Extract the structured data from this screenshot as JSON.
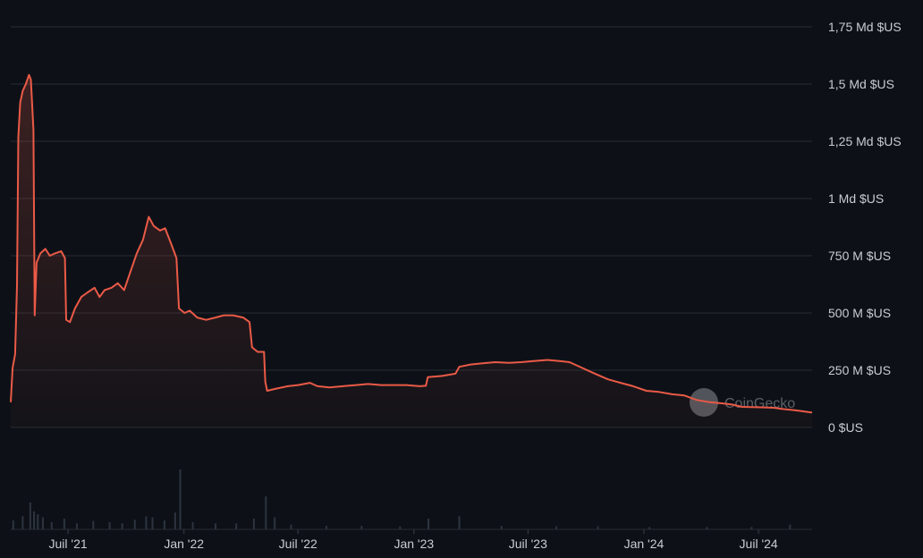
{
  "chart_data": {
    "type": "area",
    "y_axis_position": "right",
    "ylim": [
      0,
      1750000000
    ],
    "yticks": [
      {
        "value": 0,
        "label": "0 $US"
      },
      {
        "value": 250000000,
        "label": "250 M $US"
      },
      {
        "value": 500000000,
        "label": "500 M $US"
      },
      {
        "value": 750000000,
        "label": "750 M $US"
      },
      {
        "value": 1000000000,
        "label": "1 Md $US"
      },
      {
        "value": 1250000000,
        "label": "1,25 Md $US"
      },
      {
        "value": 1500000000,
        "label": "1,5 Md $US"
      },
      {
        "value": 1750000000,
        "label": "1,75 Md $US"
      }
    ],
    "xlim": [
      "2021-04-01",
      "2024-09-24"
    ],
    "xticks": [
      {
        "date": "2021-07-01",
        "label": "Juil '21"
      },
      {
        "date": "2022-01-01",
        "label": "Jan '22"
      },
      {
        "date": "2022-07-01",
        "label": "Juil '22"
      },
      {
        "date": "2023-01-01",
        "label": "Jan '23"
      },
      {
        "date": "2023-07-01",
        "label": "Juil '23"
      },
      {
        "date": "2024-01-01",
        "label": "Jan '24"
      },
      {
        "date": "2024-07-01",
        "label": "Juil '24"
      }
    ],
    "grid": true,
    "line_color": "#ea5a47",
    "watermark": "CoinGecko",
    "series": [
      {
        "points": [
          [
            "2021-04-01",
            110000000
          ],
          [
            "2021-04-04",
            260000000
          ],
          [
            "2021-04-08",
            320000000
          ],
          [
            "2021-04-11",
            620000000
          ],
          [
            "2021-04-13",
            1270000000
          ],
          [
            "2021-04-16",
            1420000000
          ],
          [
            "2021-04-20",
            1470000000
          ],
          [
            "2021-04-25",
            1500000000
          ],
          [
            "2021-04-30",
            1540000000
          ],
          [
            "2021-05-03",
            1520000000
          ],
          [
            "2021-05-07",
            1300000000
          ],
          [
            "2021-05-09",
            490000000
          ],
          [
            "2021-05-12",
            720000000
          ],
          [
            "2021-05-18",
            760000000
          ],
          [
            "2021-05-26",
            780000000
          ],
          [
            "2021-06-02",
            750000000
          ],
          [
            "2021-06-10",
            760000000
          ],
          [
            "2021-06-20",
            770000000
          ],
          [
            "2021-06-26",
            740000000
          ],
          [
            "2021-06-28",
            470000000
          ],
          [
            "2021-07-04",
            460000000
          ],
          [
            "2021-07-12",
            520000000
          ],
          [
            "2021-07-22",
            570000000
          ],
          [
            "2021-08-01",
            590000000
          ],
          [
            "2021-08-12",
            610000000
          ],
          [
            "2021-08-20",
            570000000
          ],
          [
            "2021-08-28",
            600000000
          ],
          [
            "2021-09-08",
            610000000
          ],
          [
            "2021-09-18",
            630000000
          ],
          [
            "2021-09-28",
            600000000
          ],
          [
            "2021-10-08",
            680000000
          ],
          [
            "2021-10-18",
            760000000
          ],
          [
            "2021-10-28",
            820000000
          ],
          [
            "2021-11-06",
            920000000
          ],
          [
            "2021-11-14",
            880000000
          ],
          [
            "2021-11-24",
            860000000
          ],
          [
            "2021-12-02",
            870000000
          ],
          [
            "2021-12-12",
            800000000
          ],
          [
            "2021-12-20",
            740000000
          ],
          [
            "2021-12-24",
            520000000
          ],
          [
            "2022-01-02",
            500000000
          ],
          [
            "2022-01-10",
            510000000
          ],
          [
            "2022-01-22",
            480000000
          ],
          [
            "2022-02-05",
            470000000
          ],
          [
            "2022-02-20",
            480000000
          ],
          [
            "2022-03-05",
            490000000
          ],
          [
            "2022-03-20",
            490000000
          ],
          [
            "2022-04-05",
            480000000
          ],
          [
            "2022-04-15",
            460000000
          ],
          [
            "2022-04-19",
            350000000
          ],
          [
            "2022-04-28",
            330000000
          ],
          [
            "2022-05-08",
            330000000
          ],
          [
            "2022-05-10",
            200000000
          ],
          [
            "2022-05-13",
            160000000
          ],
          [
            "2022-05-28",
            170000000
          ],
          [
            "2022-06-15",
            180000000
          ],
          [
            "2022-07-01",
            185000000
          ],
          [
            "2022-07-20",
            195000000
          ],
          [
            "2022-08-01",
            180000000
          ],
          [
            "2022-08-20",
            175000000
          ],
          [
            "2022-09-10",
            180000000
          ],
          [
            "2022-10-01",
            185000000
          ],
          [
            "2022-10-20",
            190000000
          ],
          [
            "2022-11-10",
            185000000
          ],
          [
            "2022-12-01",
            185000000
          ],
          [
            "2022-12-20",
            185000000
          ],
          [
            "2023-01-10",
            180000000
          ],
          [
            "2023-01-20",
            182000000
          ],
          [
            "2023-01-23",
            220000000
          ],
          [
            "2023-02-15",
            225000000
          ],
          [
            "2023-03-08",
            235000000
          ],
          [
            "2023-03-14",
            265000000
          ],
          [
            "2023-04-01",
            275000000
          ],
          [
            "2023-04-20",
            280000000
          ],
          [
            "2023-05-10",
            285000000
          ],
          [
            "2023-06-01",
            282000000
          ],
          [
            "2023-06-20",
            285000000
          ],
          [
            "2023-07-10",
            290000000
          ],
          [
            "2023-08-01",
            295000000
          ],
          [
            "2023-08-20",
            290000000
          ],
          [
            "2023-09-05",
            285000000
          ],
          [
            "2023-09-25",
            260000000
          ],
          [
            "2023-10-15",
            235000000
          ],
          [
            "2023-11-05",
            210000000
          ],
          [
            "2023-11-25",
            195000000
          ],
          [
            "2023-12-15",
            180000000
          ],
          [
            "2024-01-05",
            160000000
          ],
          [
            "2024-01-25",
            155000000
          ],
          [
            "2024-02-15",
            145000000
          ],
          [
            "2024-03-05",
            140000000
          ],
          [
            "2024-03-25",
            120000000
          ],
          [
            "2024-04-15",
            110000000
          ],
          [
            "2024-05-05",
            105000000
          ],
          [
            "2024-05-20",
            100000000
          ],
          [
            "2024-06-05",
            90000000
          ],
          [
            "2024-07-05",
            88000000
          ],
          [
            "2024-07-25",
            86000000
          ],
          [
            "2024-08-10",
            80000000
          ],
          [
            "2024-09-01",
            74000000
          ],
          [
            "2024-09-24",
            65000000
          ]
        ]
      }
    ],
    "volume": {
      "color": "#2d3440",
      "bars": [
        [
          "2021-04-05",
          0.15
        ],
        [
          "2021-04-20",
          0.22
        ],
        [
          "2021-05-02",
          0.45
        ],
        [
          "2021-05-08",
          0.3
        ],
        [
          "2021-05-14",
          0.25
        ],
        [
          "2021-05-22",
          0.2
        ],
        [
          "2021-06-05",
          0.12
        ],
        [
          "2021-06-25",
          0.18
        ],
        [
          "2021-07-15",
          0.1
        ],
        [
          "2021-08-10",
          0.14
        ],
        [
          "2021-09-05",
          0.12
        ],
        [
          "2021-09-25",
          0.1
        ],
        [
          "2021-10-15",
          0.16
        ],
        [
          "2021-11-02",
          0.22
        ],
        [
          "2021-11-12",
          0.2
        ],
        [
          "2021-12-01",
          0.15
        ],
        [
          "2021-12-18",
          0.28
        ],
        [
          "2021-12-26",
          1.0
        ],
        [
          "2022-01-15",
          0.12
        ],
        [
          "2022-02-20",
          0.1
        ],
        [
          "2022-03-25",
          0.1
        ],
        [
          "2022-04-22",
          0.18
        ],
        [
          "2022-05-11",
          0.55
        ],
        [
          "2022-05-25",
          0.2
        ],
        [
          "2022-06-20",
          0.08
        ],
        [
          "2022-08-15",
          0.06
        ],
        [
          "2022-10-10",
          0.06
        ],
        [
          "2022-12-10",
          0.05
        ],
        [
          "2023-01-24",
          0.18
        ],
        [
          "2023-03-14",
          0.22
        ],
        [
          "2023-05-20",
          0.06
        ],
        [
          "2023-08-15",
          0.05
        ],
        [
          "2023-10-20",
          0.05
        ],
        [
          "2024-01-10",
          0.04
        ],
        [
          "2024-04-10",
          0.04
        ],
        [
          "2024-06-20",
          0.04
        ],
        [
          "2024-08-20",
          0.08
        ]
      ]
    }
  }
}
